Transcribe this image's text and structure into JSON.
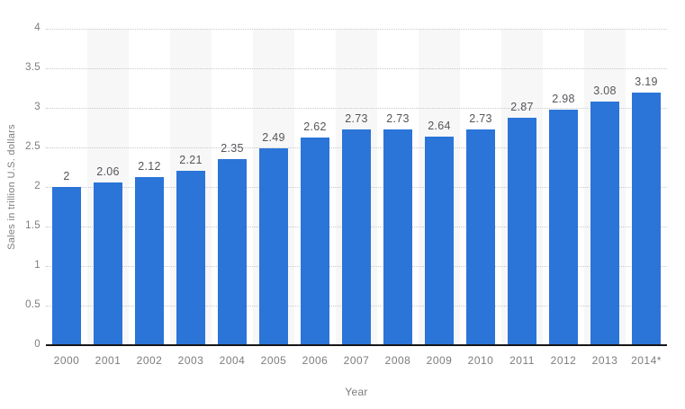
{
  "chart_data": {
    "type": "bar",
    "title": "",
    "categories": [
      "2000",
      "2001",
      "2002",
      "2003",
      "2004",
      "2005",
      "2006",
      "2007",
      "2008",
      "2009",
      "2010",
      "2011",
      "2012",
      "2013",
      "2014*"
    ],
    "values": [
      2,
      2.06,
      2.12,
      2.21,
      2.35,
      2.49,
      2.62,
      2.73,
      2.73,
      2.64,
      2.73,
      2.87,
      2.98,
      3.08,
      3.19
    ],
    "value_labels": [
      "2",
      "2.06",
      "2.12",
      "2.21",
      "2.35",
      "2.49",
      "2.62",
      "2.73",
      "2.73",
      "2.64",
      "2.73",
      "2.87",
      "2.98",
      "3.08",
      "3.19"
    ],
    "xlabel": "Year",
    "ylabel": "Sales in trillion U.S. dollars",
    "ylim": [
      0,
      4
    ],
    "ytick_step": 0.5,
    "ytick_labels": [
      "0",
      "0.5",
      "1",
      "1.5",
      "2",
      "2.5",
      "3",
      "3.5",
      "4"
    ],
    "grid": "horizontal dotted lines at every 0.5, drawn behind bars",
    "legend": "none",
    "band_pattern": "alternating light column backgrounds behind odd-indexed categories (2001, 2003, ... 2013)",
    "colors": {
      "bar": "#2b74d8",
      "column_band": "#f7f7f7",
      "gridline": "#c9c9c9",
      "axis_line": "#161616",
      "tick_label": "#7d7d7d",
      "value_label": "#55565a",
      "background": "#ffffff"
    }
  }
}
